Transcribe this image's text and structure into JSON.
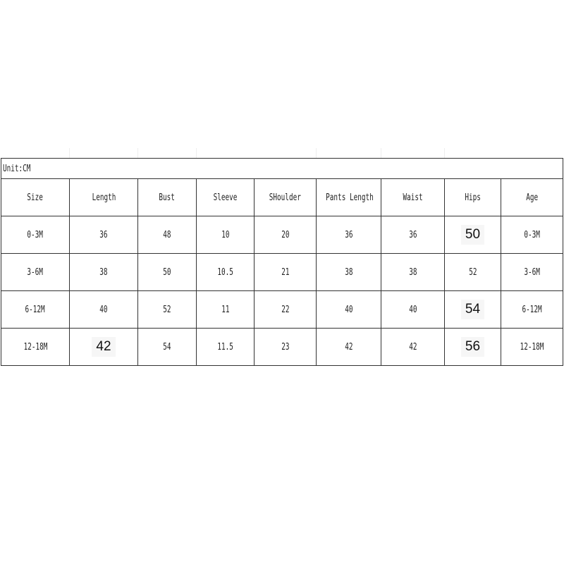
{
  "unit_label": "Unit:CM",
  "headers": [
    "Size",
    "Length",
    "Bust",
    "Sleeve",
    "SHoulder",
    "Pants Length",
    "Waist",
    "Hips",
    "Age"
  ],
  "rows": [
    [
      "0-3M",
      "36",
      "48",
      "10",
      "20",
      "36",
      "36",
      "50",
      "0-3M"
    ],
    [
      "3-6M",
      "38",
      "50",
      "10.5",
      "21",
      "38",
      "38",
      "52",
      "3-6M"
    ],
    [
      "6-12M",
      "40",
      "52",
      "11",
      "22",
      "40",
      "40",
      "54",
      "6-12M"
    ],
    [
      "12-18M",
      "42",
      "54",
      "11.5",
      "23",
      "42",
      "42",
      "56",
      "12-18M"
    ]
  ],
  "emphasized_cells": [
    [
      0,
      7
    ],
    [
      2,
      7
    ],
    [
      3,
      1
    ],
    [
      3,
      7
    ]
  ]
}
